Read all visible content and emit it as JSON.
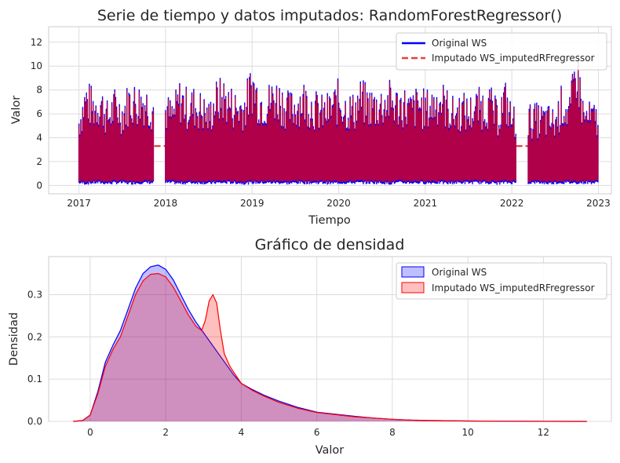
{
  "chart_data": [
    {
      "type": "line",
      "title": "Serie de tiempo y datos imputados: RandomForestRegressor()",
      "xlabel": "Tiempo",
      "ylabel": "Valor",
      "x_ticks": [
        "2017",
        "2018",
        "2019",
        "2020",
        "2021",
        "2022",
        "2023"
      ],
      "y_ticks": [
        "0",
        "2",
        "4",
        "6",
        "8",
        "10",
        "12"
      ],
      "xlim": [
        2016.65,
        2023.15
      ],
      "ylim": [
        -0.7,
        13.3
      ],
      "grid": true,
      "legend_position": "top-right",
      "legend": [
        "Original WS",
        "Imputado WS_imputedRFregressor"
      ],
      "series": [
        {
          "name": "Original WS",
          "color": "#0000ff",
          "style": "solid",
          "observed_ranges": [
            [
              2017.0,
              2017.87
            ],
            [
              2018.0,
              2018.13
            ],
            [
              2018.13,
              2022.05
            ],
            [
              2022.19,
              2023.0
            ]
          ],
          "x": [
            2017.0,
            2017.08,
            2017.17,
            2017.25,
            2017.33,
            2017.42,
            2017.5,
            2017.58,
            2017.67,
            2017.75,
            2017.83,
            2018.0,
            2018.08,
            2018.17,
            2018.25,
            2018.33,
            2018.42,
            2018.5,
            2018.58,
            2018.67,
            2018.75,
            2018.83,
            2018.92,
            2019.0,
            2019.08,
            2019.17,
            2019.25,
            2019.33,
            2019.42,
            2019.5,
            2019.58,
            2019.67,
            2019.75,
            2019.83,
            2019.92,
            2020.0,
            2020.08,
            2020.17,
            2020.25,
            2020.33,
            2020.42,
            2020.5,
            2020.58,
            2020.67,
            2020.75,
            2020.83,
            2020.92,
            2021.0,
            2021.08,
            2021.17,
            2021.25,
            2021.33,
            2021.42,
            2021.5,
            2021.58,
            2021.67,
            2021.75,
            2021.83,
            2021.92,
            2022.0,
            2022.25,
            2022.33,
            2022.42,
            2022.5,
            2022.58,
            2022.67,
            2022.75,
            2022.83,
            2022.92
          ],
          "max": [
            6.7,
            9.2,
            8.2,
            8.8,
            7.2,
            8.4,
            7.6,
            9.0,
            8.8,
            9.0,
            8.3,
            8.0,
            7.3,
            9.2,
            8.3,
            8.5,
            8.0,
            7.2,
            9.0,
            9.3,
            8.6,
            8.1,
            8.4,
            10.7,
            9.0,
            8.6,
            9.4,
            9.1,
            8.0,
            8.4,
            9.2,
            8.6,
            8.0,
            7.6,
            8.3,
            9.1,
            8.2,
            7.9,
            9.1,
            8.6,
            8.4,
            8.6,
            9.0,
            8.5,
            8.6,
            7.9,
            8.6,
            8.1,
            8.5,
            9.2,
            8.3,
            7.5,
            8.1,
            7.6,
            8.2,
            8.4,
            8.5,
            7.2,
            9.1,
            6.9,
            7.0,
            7.0,
            6.9,
            6.6,
            8.7,
            7.5,
            12.8,
            7.2,
            7.1
          ],
          "min": [
            0.1,
            0.05,
            0.1,
            0.1,
            0.05,
            0.1,
            0.1,
            0.05,
            0.1,
            0.1,
            0.1,
            0.1,
            0.1,
            0.05,
            0.1,
            0.1,
            0.1,
            0.05,
            0.1,
            0.1,
            0.1,
            0.1,
            0.05,
            0.1,
            0.1,
            0.1,
            0.1,
            0.1,
            0.05,
            0.1,
            0.1,
            0.1,
            0.1,
            0.1,
            0.05,
            0.1,
            0.1,
            0.1,
            0.1,
            0.1,
            0.1,
            0.1,
            0.05,
            0.1,
            0.1,
            0.1,
            0.1,
            0.1,
            0.1,
            0.1,
            0.05,
            0.1,
            0.1,
            0.1,
            0.1,
            0.1,
            0.1,
            0.05,
            0.1,
            0.1,
            0.1,
            0.1,
            0.05,
            0.1,
            0.1,
            0.1,
            0.1,
            0.1,
            0.1
          ]
        },
        {
          "name": "Imputado WS_imputedRFregressor",
          "color": "#e8403f",
          "style": "dashed",
          "imputed_segments": [
            {
              "x": [
                2017.87,
                2018.0
              ],
              "y": 3.3
            },
            {
              "x": [
                2021.9,
                2022.05
              ],
              "y": 3.3
            },
            {
              "x": [
                2022.05,
                2022.19
              ],
              "y": 3.3
            }
          ]
        }
      ]
    },
    {
      "type": "area",
      "title": "Gráfico de densidad",
      "xlabel": "Valor",
      "ylabel": "Densidad",
      "x_ticks": [
        "0",
        "2",
        "4",
        "6",
        "8",
        "10",
        "12"
      ],
      "y_ticks": [
        "0.0",
        "0.1",
        "0.2",
        "0.3"
      ],
      "xlim": [
        -1.1,
        13.8
      ],
      "ylim": [
        0,
        0.39
      ],
      "grid": true,
      "legend_position": "top-right",
      "legend": [
        "Original WS",
        "Imputado WS_imputedRFregressor"
      ],
      "series": [
        {
          "name": "Original WS",
          "color": "#0000ff",
          "fill": "rgba(0,0,255,0.25)",
          "x": [
            -0.45,
            -0.2,
            0,
            0.2,
            0.4,
            0.6,
            0.8,
            1.0,
            1.2,
            1.4,
            1.6,
            1.8,
            2.0,
            2.2,
            2.4,
            2.6,
            2.8,
            3.0,
            3.2,
            3.4,
            3.6,
            3.8,
            4.0,
            4.3,
            4.6,
            5.0,
            5.5,
            6.0,
            6.5,
            7.0,
            7.5,
            8.0,
            8.5,
            9.0,
            10.0,
            11.0,
            12.0,
            13.15
          ],
          "y": [
            0.0,
            0.002,
            0.015,
            0.07,
            0.14,
            0.18,
            0.215,
            0.265,
            0.315,
            0.35,
            0.366,
            0.37,
            0.36,
            0.335,
            0.3,
            0.265,
            0.235,
            0.21,
            0.185,
            0.16,
            0.135,
            0.11,
            0.09,
            0.075,
            0.062,
            0.048,
            0.033,
            0.022,
            0.017,
            0.012,
            0.008,
            0.005,
            0.003,
            0.002,
            0.001,
            0.0005,
            0.0002,
            0.0
          ]
        },
        {
          "name": "Imputado WS_imputedRFregressor",
          "color": "#ff0000",
          "fill": "rgba(255,0,0,0.25)",
          "x": [
            -0.45,
            -0.2,
            0,
            0.2,
            0.4,
            0.6,
            0.8,
            1.0,
            1.2,
            1.4,
            1.6,
            1.8,
            2.0,
            2.2,
            2.4,
            2.6,
            2.8,
            2.95,
            3.05,
            3.15,
            3.25,
            3.35,
            3.45,
            3.55,
            3.7,
            3.85,
            4.0,
            4.3,
            4.6,
            5.0,
            5.5,
            6.0,
            6.5,
            7.0,
            7.5,
            8.0,
            8.5,
            9.0,
            10.0,
            11.0,
            12.0,
            13.15
          ],
          "y": [
            0.0,
            0.002,
            0.015,
            0.065,
            0.13,
            0.17,
            0.2,
            0.25,
            0.3,
            0.333,
            0.348,
            0.35,
            0.342,
            0.318,
            0.285,
            0.252,
            0.225,
            0.215,
            0.24,
            0.285,
            0.3,
            0.28,
            0.215,
            0.16,
            0.13,
            0.11,
            0.09,
            0.073,
            0.06,
            0.045,
            0.031,
            0.021,
            0.016,
            0.011,
            0.008,
            0.005,
            0.003,
            0.002,
            0.001,
            0.0005,
            0.0002,
            0.0
          ]
        }
      ]
    }
  ]
}
